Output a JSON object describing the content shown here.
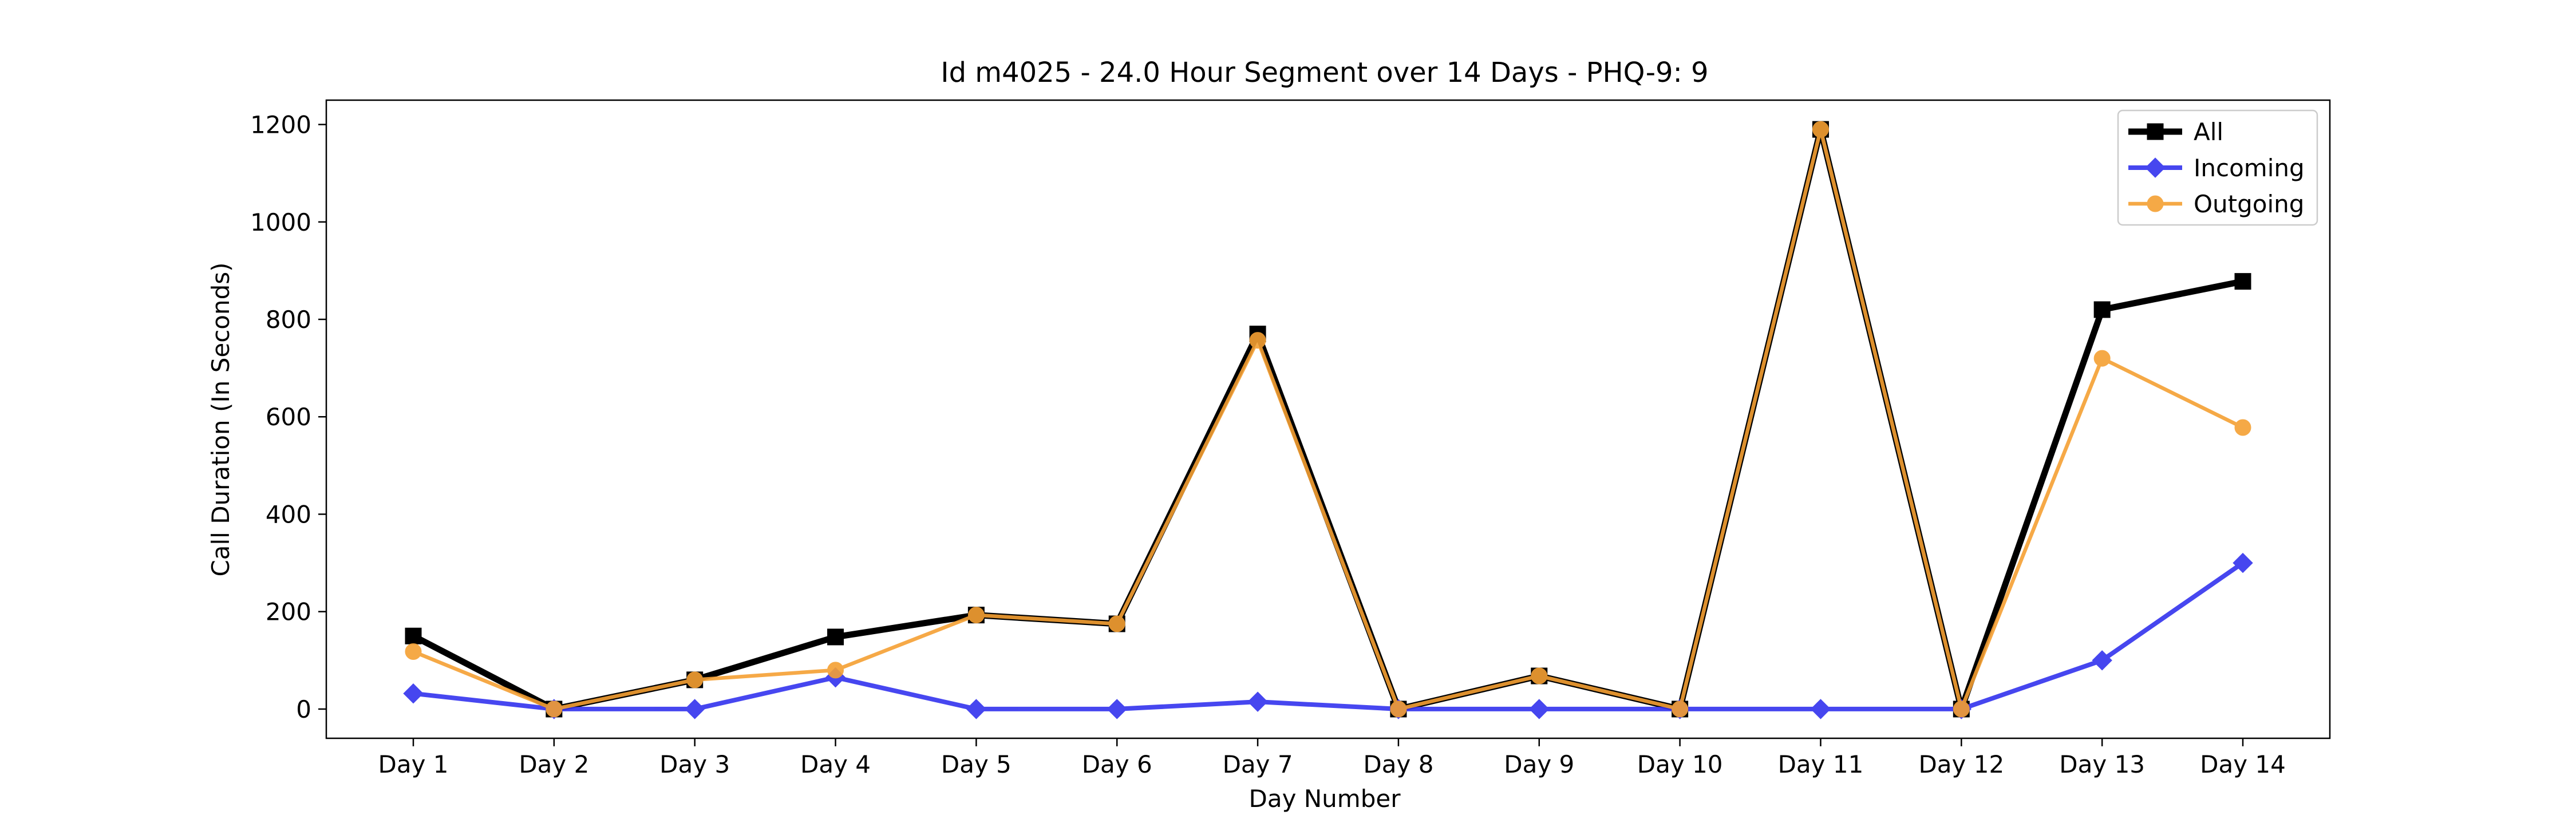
{
  "chart_data": {
    "type": "line",
    "title": "Id m4025 - 24.0 Hour Segment over 14 Days - PHQ-9: 9",
    "xlabel": "Day Number",
    "ylabel": "Call Duration (In Seconds)",
    "categories": [
      "Day 1",
      "Day 2",
      "Day 3",
      "Day 4",
      "Day 5",
      "Day 6",
      "Day 7",
      "Day 8",
      "Day 9",
      "Day 10",
      "Day 11",
      "Day 12",
      "Day 13",
      "Day 14"
    ],
    "ylim": [
      -60,
      1250
    ],
    "yticks": [
      0,
      200,
      400,
      600,
      800,
      1000,
      1200
    ],
    "grid": false,
    "legend_position": "top-right",
    "series": [
      {
        "name": "All",
        "color": "#000000",
        "marker": "square",
        "values": [
          150,
          0,
          60,
          148,
          193,
          175,
          770,
          0,
          68,
          0,
          1190,
          0,
          820,
          878
        ]
      },
      {
        "name": "Incoming",
        "color": "#3333ee",
        "marker": "diamond",
        "values": [
          32,
          0,
          0,
          65,
          0,
          0,
          15,
          0,
          0,
          0,
          0,
          0,
          100,
          300
        ]
      },
      {
        "name": "Outgoing",
        "color": "#f5a033",
        "marker": "circle",
        "values": [
          118,
          0,
          60,
          80,
          193,
          175,
          757,
          0,
          68,
          0,
          1190,
          0,
          720,
          578
        ]
      }
    ]
  }
}
